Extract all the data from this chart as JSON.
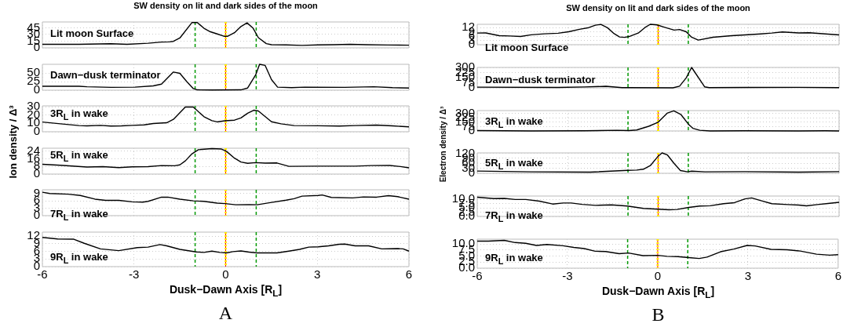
{
  "chart_data": [
    {
      "type": "line",
      "title": "SW density on lit and dark sides of the moon",
      "annotations": [
        "Lit moon Surface"
      ],
      "color": "#000000",
      "marker": "none",
      "grid": true,
      "tick_labels": "y",
      "xlim": [
        -6,
        6
      ],
      "xticks": [
        -6,
        -3,
        0,
        3,
        6
      ],
      "ylim": [
        0,
        58
      ],
      "yticks": [
        0,
        15,
        30,
        45
      ],
      "x": [
        -6,
        -4.8,
        -3.76,
        -3.23,
        -2.54,
        -2.1,
        -1.84,
        -1.71,
        -1.5,
        -1.1,
        -0.93,
        -0.71,
        -0.5,
        -0.28,
        -0.06,
        0.07,
        0.29,
        0.5,
        0.7,
        0.9,
        1.07,
        1.33,
        1.5,
        1.98,
        2.5,
        3.03,
        3.55,
        4.07,
        4.6,
        5.29,
        6
      ],
      "values": [
        7.9,
        7.9,
        9.1,
        7.9,
        10.3,
        13,
        13.4,
        14.6,
        22,
        56.8,
        56.8,
        43.8,
        36,
        31.2,
        26,
        26,
        34,
        47.8,
        56,
        43.8,
        22.9,
        9.5,
        7.1,
        6.7,
        5.5,
        6.7,
        7.1,
        7.9,
        7.1,
        6.3,
        5.9
      ],
      "ref_lines": [
        {
          "axis": "x",
          "value": -1,
          "color": "#009900",
          "line_style": "dashed"
        },
        {
          "axis": "x",
          "value": 1,
          "color": "#009900",
          "line_style": "dashed"
        },
        {
          "axis": "x",
          "value": 0,
          "color": "#ff0000",
          "line_style": "solid"
        },
        {
          "axis": "x",
          "value": 0,
          "color": "#ffee00",
          "line_style": "dotted"
        }
      ]
    },
    {
      "type": "line",
      "annotations": [
        "Dawn−dusk terminator"
      ],
      "color": "#000000",
      "marker": "none",
      "grid": true,
      "tick_labels": "y",
      "xlim": [
        -6,
        6
      ],
      "xticks": [
        -6,
        -3,
        0,
        3,
        6
      ],
      "ylim": [
        0,
        75
      ],
      "yticks": [
        0,
        25,
        50
      ],
      "x": [
        -6,
        -4.8,
        -4.54,
        -3.76,
        -2.97,
        -2.37,
        -2.1,
        -1.71,
        -1.5,
        -1.28,
        -1.06,
        -0.93,
        -0.45,
        0.5,
        0.72,
        0.98,
        1.11,
        1.29,
        1.5,
        1.7,
        2.16,
        2.59,
        3.9,
        4.85,
        5.46,
        6
      ],
      "values": [
        11.5,
        11.5,
        9.9,
        8.3,
        8.9,
        12.5,
        17.7,
        52.6,
        49,
        25.5,
        4.7,
        1,
        0.5,
        1,
        6.3,
        43.8,
        75,
        72,
        30.7,
        8.9,
        7.3,
        8.9,
        8.3,
        9.9,
        7.3,
        6.3
      ],
      "ref_lines": [
        {
          "axis": "x",
          "value": -1,
          "color": "#009900",
          "line_style": "dashed"
        },
        {
          "axis": "x",
          "value": 1,
          "color": "#009900",
          "line_style": "dashed"
        },
        {
          "axis": "x",
          "value": 0,
          "color": "#ff0000",
          "line_style": "solid"
        },
        {
          "axis": "x",
          "value": 0,
          "color": "#ffee00",
          "line_style": "dotted"
        }
      ]
    },
    {
      "type": "line",
      "ylabel": "Ion density / Δ³",
      "annotations": [
        "3R$_{L}$ in wake"
      ],
      "color": "#000000",
      "marker": "none",
      "grid": true,
      "tick_labels": "y",
      "xlim": [
        -6,
        6
      ],
      "xticks": [
        -6,
        -3,
        0,
        3,
        6
      ],
      "ylim": [
        0,
        31
      ],
      "yticks": [
        0,
        10,
        20,
        30
      ],
      "x": [
        -6,
        -5.41,
        -4.8,
        -4.54,
        -4.1,
        -3.76,
        -3.41,
        -3.06,
        -2.67,
        -2.37,
        -1.93,
        -1.71,
        -1.32,
        -1.06,
        -0.71,
        -0.45,
        -0.28,
        -0.02,
        0.29,
        0.5,
        0.72,
        0.92,
        1.07,
        1.5,
        1.81,
        2.24,
        3.03,
        3.72,
        4.24,
        4.94,
        5.46,
        6
      ],
      "values": [
        11.6,
        9.5,
        7.4,
        7,
        7.6,
        6.8,
        7,
        7.6,
        8.2,
        9.9,
        10.8,
        14.8,
        29.6,
        29.6,
        18,
        13.3,
        11.8,
        13.1,
        13.9,
        16.5,
        22.2,
        25.8,
        24.9,
        12,
        9.5,
        7.4,
        7.2,
        6.8,
        7.4,
        8,
        7,
        5.9
      ],
      "ref_lines": [
        {
          "axis": "x",
          "value": -1,
          "color": "#009900",
          "line_style": "dashed"
        },
        {
          "axis": "x",
          "value": 1,
          "color": "#009900",
          "line_style": "dashed"
        },
        {
          "axis": "x",
          "value": 0,
          "color": "#ff0000",
          "line_style": "solid"
        },
        {
          "axis": "x",
          "value": 0,
          "color": "#ffee00",
          "line_style": "dotted"
        }
      ]
    },
    {
      "type": "line",
      "annotations": [
        "5R$_{L}$ in wake"
      ],
      "color": "#000000",
      "marker": "none",
      "grid": true,
      "tick_labels": "y",
      "xlim": [
        -6,
        6
      ],
      "xticks": [
        -6,
        -3,
        0,
        3,
        6
      ],
      "ylim": [
        0,
        27
      ],
      "yticks": [
        0,
        8,
        16,
        24
      ],
      "x": [
        -6,
        -5.41,
        -4.54,
        -4.02,
        -3.5,
        -3.06,
        -2.54,
        -2.1,
        -1.67,
        -1.5,
        -1.32,
        -1.1,
        -0.89,
        -0.45,
        -0.15,
        0.03,
        0.29,
        0.5,
        0.72,
        0.98,
        1.29,
        1.68,
        2.07,
        3.03,
        4.24,
        4.77,
        5.37,
        5.72,
        6
      ],
      "values": [
        10.2,
        9.2,
        7.4,
        7.8,
        6.8,
        7.6,
        7.8,
        8.9,
        8.7,
        9.6,
        13.8,
        21.2,
        25.5,
        26.6,
        26.2,
        23.6,
        16.6,
        12.6,
        11.3,
        12,
        11.4,
        11.6,
        8.1,
        8.3,
        8.3,
        8.9,
        9,
        7.9,
        6.5
      ],
      "ref_lines": [
        {
          "axis": "x",
          "value": -1,
          "color": "#009900",
          "line_style": "dashed"
        },
        {
          "axis": "x",
          "value": 1,
          "color": "#009900",
          "line_style": "dashed"
        },
        {
          "axis": "x",
          "value": 0,
          "color": "#ff0000",
          "line_style": "solid"
        },
        {
          "axis": "x",
          "value": 0,
          "color": "#ffee00",
          "line_style": "dotted"
        }
      ]
    },
    {
      "type": "line",
      "annotations": [
        "7R$_{L}$ in wake"
      ],
      "color": "#000000",
      "marker": "none",
      "grid": true,
      "tick_labels": "y",
      "xlim": [
        -6,
        6
      ],
      "xticks": [
        -6,
        -3,
        0,
        3,
        6
      ],
      "ylim": [
        0,
        10.5
      ],
      "yticks": [
        0,
        3,
        6,
        9
      ],
      "x": [
        -6,
        -5.76,
        -5.15,
        -4.76,
        -4.28,
        -3.93,
        -3.5,
        -3.06,
        -2.71,
        -2.54,
        -2.1,
        -1.89,
        -1.5,
        -1.06,
        -0.71,
        -0.28,
        -0.02,
        0.33,
        0.77,
        1.03,
        1.46,
        1.98,
        2.24,
        2.5,
        3.03,
        3.16,
        3.46,
        4.16,
        4.51,
        4.94,
        5.33,
        5.63,
        6
      ],
      "values": [
        9.5,
        9,
        8.7,
        8.2,
        6.7,
        6.2,
        6.2,
        5.6,
        5.5,
        5.8,
        7.5,
        7.5,
        6.7,
        6,
        5.8,
        5.1,
        4.9,
        4.4,
        4.5,
        4.4,
        5.3,
        6.3,
        6.9,
        7.9,
        8.2,
        8.4,
        7.4,
        7.2,
        7.6,
        7.5,
        8.1,
        7.7,
        6.7
      ],
      "ref_lines": [
        {
          "axis": "x",
          "value": -1,
          "color": "#009900",
          "line_style": "dashed"
        },
        {
          "axis": "x",
          "value": 1,
          "color": "#009900",
          "line_style": "dashed"
        },
        {
          "axis": "x",
          "value": 0,
          "color": "#ff0000",
          "line_style": "solid"
        },
        {
          "axis": "x",
          "value": 0,
          "color": "#ffee00",
          "line_style": "dotted"
        }
      ]
    },
    {
      "type": "line",
      "xlabel": "Dusk−Dawn Axis [R$_{L}$]",
      "annotations": [
        "9R$_{L}$ in wake",
        "A"
      ],
      "color": "#000000",
      "marker": "none",
      "grid": true,
      "xlim": [
        -6,
        6
      ],
      "xticks": [
        -6,
        -3,
        0,
        3,
        6
      ],
      "ylim": [
        0,
        13.6
      ],
      "yticks": [
        0,
        3,
        6,
        9,
        12
      ],
      "x": [
        -6,
        -5.5,
        -4.97,
        -4.63,
        -4.1,
        -3.5,
        -2.89,
        -2.54,
        -2.15,
        -1.93,
        -1.5,
        -0.97,
        -0.71,
        -0.45,
        -0.19,
        0.03,
        0.24,
        0.5,
        0.77,
        1.03,
        1.68,
        2.07,
        2.42,
        2.72,
        3.03,
        3.37,
        3.72,
        3.9,
        4.24,
        4.68,
        5.11,
        5.63,
        5.81,
        6
      ],
      "values": [
        11.5,
        10.9,
        10.8,
        9.2,
        7,
        6.3,
        7.5,
        7.7,
        8.7,
        8.2,
        6.8,
        5.8,
        5.6,
        6.1,
        5.6,
        5.4,
        5.9,
        6.2,
        5.7,
        5.4,
        5.4,
        6.1,
        6.8,
        7.7,
        7.8,
        8.2,
        8.8,
        8.9,
        8.2,
        8.2,
        7,
        7.1,
        7,
        6.1
      ],
      "ref_lines": [
        {
          "axis": "x",
          "value": -1,
          "color": "#009900",
          "line_style": "dashed"
        },
        {
          "axis": "x",
          "value": 1,
          "color": "#009900",
          "line_style": "dashed"
        },
        {
          "axis": "x",
          "value": 0,
          "color": "#ff0000",
          "line_style": "solid"
        },
        {
          "axis": "x",
          "value": 0,
          "color": "#ffee00",
          "line_style": "dotted"
        }
      ]
    },
    {
      "type": "line",
      "title": "SW density on lit and dark sides of the moon",
      "annotations": [
        "Lit moon Surface"
      ],
      "color": "#000000",
      "marker": "none",
      "grid": true,
      "tick_labels": "y",
      "xlim": [
        -6,
        6
      ],
      "xticks": [
        -6,
        -3,
        0,
        3,
        6
      ],
      "ylim": [
        0,
        14.2
      ],
      "yticks": [
        0,
        3,
        6,
        9,
        12
      ],
      "x": [
        -6,
        -5.72,
        -5.27,
        -4.92,
        -4.56,
        -4.21,
        -3.77,
        -3.32,
        -2.97,
        -2.61,
        -2.3,
        -2.08,
        -1.9,
        -1.68,
        -1.46,
        -1.28,
        -1.11,
        -0.93,
        -0.66,
        -0.44,
        -0.26,
        -0.04,
        0.22,
        0.53,
        0.71,
        0.93,
        1.11,
        1.33,
        1.82,
        2.44,
        2.88,
        3.41,
        3.77,
        4.12,
        4.66,
        5.01,
        5.54,
        6
      ],
      "values": [
        8.1,
        8.2,
        6.3,
        6.1,
        5.7,
        6.9,
        7.6,
        8,
        9,
        10.7,
        11.9,
        13.6,
        14.1,
        11.8,
        7.7,
        5.4,
        5.1,
        5.9,
        8.1,
        11.9,
        14.2,
        13.8,
        12.1,
        10.2,
        10.6,
        9,
        5.2,
        3.2,
        5.2,
        6.3,
        6.8,
        7.5,
        8.1,
        8.9,
        8.2,
        8.3,
        7.5,
        6.8
      ],
      "ref_lines": [
        {
          "axis": "x",
          "value": -1,
          "color": "#009900",
          "line_style": "dashed"
        },
        {
          "axis": "x",
          "value": 1,
          "color": "#009900",
          "line_style": "dashed"
        },
        {
          "axis": "x",
          "value": 0,
          "color": "#ff0000",
          "line_style": "solid"
        },
        {
          "axis": "x",
          "value": 0,
          "color": "#ffee00",
          "line_style": "dotted"
        }
      ]
    },
    {
      "type": "line",
      "annotations": [
        "Dawn−dusk terminator"
      ],
      "color": "#000000",
      "marker": "none",
      "grid": true,
      "tick_labels": "y",
      "xlim": [
        -6,
        6
      ],
      "xticks": [
        -6,
        -3,
        0,
        3,
        6
      ],
      "ylim": [
        0,
        300
      ],
      "yticks": [
        0,
        75,
        150,
        225,
        300
      ],
      "x": [
        -6,
        -3.32,
        -2.44,
        -1.73,
        -1.2,
        -1.02,
        0.49,
        0.71,
        0.93,
        1.11,
        1.54,
        1.69,
        2.88,
        4.66,
        6
      ],
      "values": [
        10,
        5,
        12.5,
        22.5,
        2.5,
        2.5,
        0,
        25,
        145,
        300,
        15,
        2.5,
        5,
        7.5,
        2.5
      ],
      "ref_lines": [
        {
          "axis": "x",
          "value": -1,
          "color": "#009900",
          "line_style": "dashed"
        },
        {
          "axis": "x",
          "value": 1,
          "color": "#009900",
          "line_style": "dashed"
        },
        {
          "axis": "x",
          "value": 0,
          "color": "#ff0000",
          "line_style": "solid"
        },
        {
          "axis": "x",
          "value": 0,
          "color": "#ffee00",
          "line_style": "dotted"
        }
      ]
    },
    {
      "type": "line",
      "ylabel": "Electron density / Δ³",
      "annotations": [
        "3R$_{L}$ in wake"
      ],
      "color": "#000000",
      "marker": "none",
      "grid": true,
      "tick_labels": "y",
      "xlim": [
        -6,
        6
      ],
      "xticks": [
        -6,
        -3,
        0,
        3,
        6
      ],
      "ylim": [
        0,
        350
      ],
      "yticks": [
        0,
        75,
        150,
        225,
        300
      ],
      "x": [
        -6,
        -4.21,
        -2.44,
        -1.37,
        -0.97,
        -0.71,
        -0.31,
        0,
        0.31,
        0.52,
        0.76,
        1.02,
        1.15,
        1.38,
        1.73,
        2.88,
        4.66,
        5.54,
        6
      ],
      "values": [
        5.8,
        0,
        2.9,
        11.5,
        5.8,
        17.3,
        80.8,
        150,
        308.7,
        346,
        280,
        106.7,
        46,
        11.5,
        0,
        2.9,
        0,
        2.9,
        0
      ],
      "ref_lines": [
        {
          "axis": "x",
          "value": -1,
          "color": "#009900",
          "line_style": "dashed"
        },
        {
          "axis": "x",
          "value": 1,
          "color": "#009900",
          "line_style": "dashed"
        },
        {
          "axis": "x",
          "value": 0,
          "color": "#ff0000",
          "line_style": "solid"
        },
        {
          "axis": "x",
          "value": 0,
          "color": "#ffee00",
          "line_style": "dotted"
        }
      ]
    },
    {
      "type": "line",
      "annotations": [
        "5R$_{L}$ in wake"
      ],
      "color": "#000000",
      "marker": "none",
      "grid": true,
      "tick_labels": "y",
      "xlim": [
        -6,
        6
      ],
      "xticks": [
        -6,
        -3,
        0,
        3,
        6
      ],
      "ylim": [
        0,
        122
      ],
      "yticks": [
        0,
        30,
        60,
        90,
        120
      ],
      "x": [
        -6,
        -4.21,
        -2.26,
        -1.02,
        -0.71,
        -0.49,
        -0.26,
        0,
        0.13,
        0.31,
        0.53,
        0.74,
        0.98,
        1.11,
        1.55,
        2.88,
        4.66,
        6
      ],
      "values": [
        13.7,
        8.8,
        6.8,
        17.6,
        19.5,
        24.4,
        45.9,
        102.4,
        122,
        109.3,
        58.5,
        16.6,
        8.8,
        12.7,
        8.8,
        9.8,
        6.8,
        9.8
      ],
      "ref_lines": [
        {
          "axis": "x",
          "value": -1,
          "color": "#009900",
          "line_style": "dashed"
        },
        {
          "axis": "x",
          "value": 1,
          "color": "#009900",
          "line_style": "dashed"
        },
        {
          "axis": "x",
          "value": 0,
          "color": "#ff0000",
          "line_style": "solid"
        },
        {
          "axis": "x",
          "value": 0,
          "color": "#ffee00",
          "line_style": "dotted"
        }
      ]
    },
    {
      "type": "line",
      "annotations": [
        "7R$_{L}$ in wake"
      ],
      "color": "#000000",
      "marker": "none",
      "grid": true,
      "tick_labels": "y",
      "xlim": [
        -6,
        6
      ],
      "xticks": [
        -6,
        -3,
        0,
        3,
        6
      ],
      "ylim": [
        0,
        12
      ],
      "yticks": [
        {
          "value": 0,
          "label": "0.0"
        },
        2.5,
        {
          "value": 5,
          "label": "5.0"
        },
        7.5,
        {
          "value": 10,
          "label": "10.0"
        }
      ],
      "x": [
        -6,
        -5.45,
        -5.1,
        -4.74,
        -4.39,
        -3.94,
        -3.5,
        -3.15,
        -2.88,
        -2.52,
        -2.08,
        -1.55,
        -1.02,
        -0.49,
        0,
        0.36,
        0.62,
        1.02,
        1.38,
        1.73,
        2.17,
        2.53,
        2.88,
        3.1,
        3.41,
        3.77,
        4.3,
        4.66,
        4.92,
        5.28,
        5.63,
        6
      ],
      "values": [
        11.3,
        10.5,
        10.6,
        10,
        10,
        9,
        7.3,
        7.9,
        7.9,
        7.1,
        6.5,
        6.8,
        6.1,
        4.7,
        4.3,
        3.9,
        4.1,
        5.3,
        6.1,
        6.3,
        7.5,
        8.1,
        10.3,
        10.9,
        9.3,
        7.5,
        7,
        6.7,
        6.2,
        7,
        7.6,
        8.3
      ],
      "ref_lines": [
        {
          "axis": "x",
          "value": -1,
          "color": "#009900",
          "line_style": "dashed"
        },
        {
          "axis": "x",
          "value": 1,
          "color": "#009900",
          "line_style": "dashed"
        },
        {
          "axis": "x",
          "value": 0,
          "color": "#ff0000",
          "line_style": "solid"
        },
        {
          "axis": "x",
          "value": 0,
          "color": "#ffee00",
          "line_style": "dotted"
        }
      ]
    },
    {
      "type": "line",
      "xlabel": "Dusk−Dawn Axis [R$_{L}$]",
      "annotations": [
        "9R$_{L}$ in wake",
        "B"
      ],
      "color": "#000000",
      "marker": "none",
      "grid": true,
      "xlim": [
        -6,
        6
      ],
      "xticks": [
        -6,
        -3,
        0,
        3,
        6
      ],
      "ylim": [
        0,
        12
      ],
      "yticks": [
        {
          "value": 0,
          "label": "0.0"
        },
        2.5,
        {
          "value": 5,
          "label": "5.0"
        },
        7.5,
        {
          "value": 10,
          "label": "10.0"
        }
      ],
      "x": [
        -6,
        -5.63,
        -5.1,
        -4.74,
        -4.39,
        -4.03,
        -3.68,
        -3.15,
        -2.79,
        -2.44,
        -2.08,
        -1.73,
        -1.28,
        -0.97,
        -0.49,
        0,
        0.31,
        0.67,
        1.11,
        1.38,
        1.64,
        2.09,
        2.53,
        2.97,
        3.24,
        3.77,
        4.3,
        4.74,
        5.28,
        5.72,
        6
      ],
      "values": [
        11.2,
        11.2,
        11.5,
        10.6,
        10.3,
        9.4,
        9.8,
        9.3,
        8.6,
        8.1,
        7,
        6.9,
        6,
        6.3,
        5.2,
        5.3,
        4.9,
        4.8,
        4.3,
        4,
        4.6,
        6.8,
        7.9,
        9.4,
        9.2,
        7.8,
        7.6,
        7.1,
        5.8,
        5.4,
        5.6
      ],
      "ref_lines": [
        {
          "axis": "x",
          "value": -1,
          "color": "#009900",
          "line_style": "dashed"
        },
        {
          "axis": "x",
          "value": 1,
          "color": "#009900",
          "line_style": "dashed"
        },
        {
          "axis": "x",
          "value": 0,
          "color": "#ff0000",
          "line_style": "solid"
        },
        {
          "axis": "x",
          "value": 0,
          "color": "#ffee00",
          "line_style": "dotted"
        }
      ]
    }
  ]
}
